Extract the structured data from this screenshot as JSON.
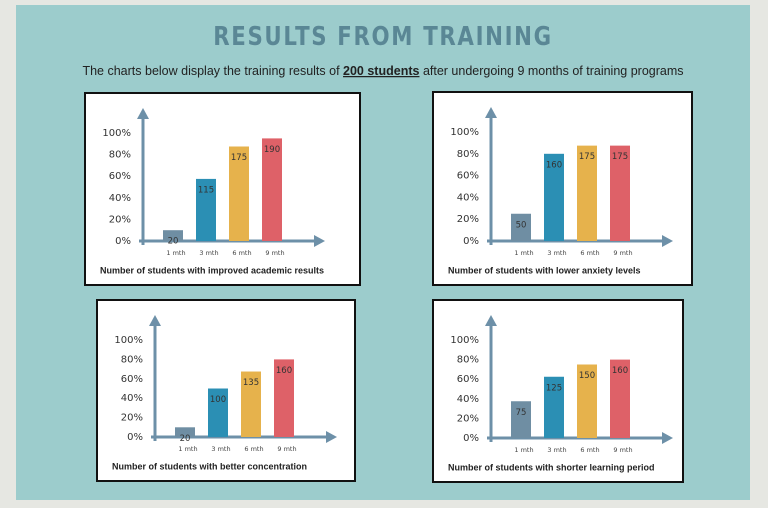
{
  "title": "RESULTS FROM TRAINING",
  "subtitle": {
    "before": "The charts below display the training results of",
    "emphasis": "200 students",
    "after": "after undergoing 9 months of training programs"
  },
  "chart_data": [
    {
      "type": "bar",
      "title": "Number of students with improved academic results",
      "categories": [
        "1 mth",
        "3 mth",
        "6 mth",
        "9 mth"
      ],
      "values": [
        20,
        115,
        175,
        190
      ],
      "colors": [
        "#6f8ea3",
        "#2b8fb4",
        "#e6b24c",
        "#de6168"
      ],
      "ylim": [
        0,
        200
      ],
      "yticks": [
        {
          "value": 0,
          "label": "0%"
        },
        {
          "value": 40,
          "label": "20%"
        },
        {
          "value": 80,
          "label": "40%"
        },
        {
          "value": 120,
          "label": "60%"
        },
        {
          "value": 160,
          "label": "80%"
        },
        {
          "value": 200,
          "label": "100%"
        }
      ]
    },
    {
      "type": "bar",
      "title": "Number of students with lower anxiety levels",
      "categories": [
        "1 mth",
        "3 mth",
        "6 mth",
        "9 mth"
      ],
      "values": [
        50,
        160,
        175,
        175
      ],
      "colors": [
        "#6f8ea3",
        "#2b8fb4",
        "#e6b24c",
        "#de6168"
      ],
      "ylim": [
        0,
        200
      ],
      "yticks": [
        {
          "value": 0,
          "label": "0%"
        },
        {
          "value": 40,
          "label": "20%"
        },
        {
          "value": 80,
          "label": "40%"
        },
        {
          "value": 120,
          "label": "60%"
        },
        {
          "value": 160,
          "label": "80%"
        },
        {
          "value": 200,
          "label": "100%"
        }
      ]
    },
    {
      "type": "bar",
      "title": "Number of students with better concentration",
      "categories": [
        "1 mth",
        "3 mth",
        "6 mth",
        "9 mth"
      ],
      "values": [
        20,
        100,
        135,
        160
      ],
      "colors": [
        "#6f8ea3",
        "#2b8fb4",
        "#e6b24c",
        "#de6168"
      ],
      "ylim": [
        0,
        200
      ],
      "yticks": [
        {
          "value": 0,
          "label": "0%"
        },
        {
          "value": 40,
          "label": "20%"
        },
        {
          "value": 80,
          "label": "40%"
        },
        {
          "value": 120,
          "label": "60%"
        },
        {
          "value": 160,
          "label": "80%"
        },
        {
          "value": 200,
          "label": "100%"
        }
      ]
    },
    {
      "type": "bar",
      "title": "Number of students with shorter learning period",
      "categories": [
        "1 mth",
        "3 mth",
        "6 mth",
        "9 mth"
      ],
      "values": [
        75,
        125,
        150,
        160
      ],
      "colors": [
        "#6f8ea3",
        "#2b8fb4",
        "#e6b24c",
        "#de6168"
      ],
      "ylim": [
        0,
        200
      ],
      "yticks": [
        {
          "value": 0,
          "label": "0%"
        },
        {
          "value": 40,
          "label": "20%"
        },
        {
          "value": 80,
          "label": "40%"
        },
        {
          "value": 120,
          "label": "60%"
        },
        {
          "value": 160,
          "label": "80%"
        },
        {
          "value": 200,
          "label": "100%"
        }
      ]
    }
  ]
}
